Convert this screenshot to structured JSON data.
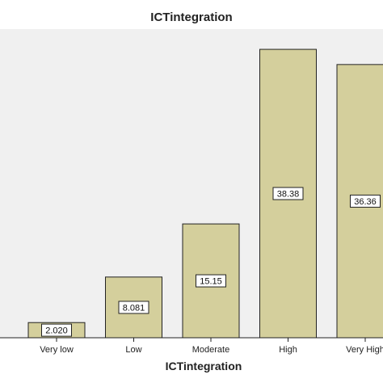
{
  "chart_data": {
    "type": "bar",
    "title": "ICTintegration",
    "xlabel": "ICTintegration",
    "ylabel": "",
    "categories": [
      "Very low",
      "Low",
      "Moderate",
      "High",
      "Very High"
    ],
    "values": [
      2.02,
      8.081,
      15.15,
      38.38,
      36.36
    ],
    "value_labels": [
      "2.020",
      "8.081",
      "15.15",
      "38.38",
      "36.36"
    ],
    "ylim": [
      0,
      40
    ],
    "grid": false,
    "legend": "none",
    "colors": {
      "bar_fill": "#d4cf9c",
      "bar_stroke": "#222222",
      "plot_background": "#f0f0f0",
      "page_background": "#ffffff",
      "label_box_fill": "#ffffff"
    }
  }
}
